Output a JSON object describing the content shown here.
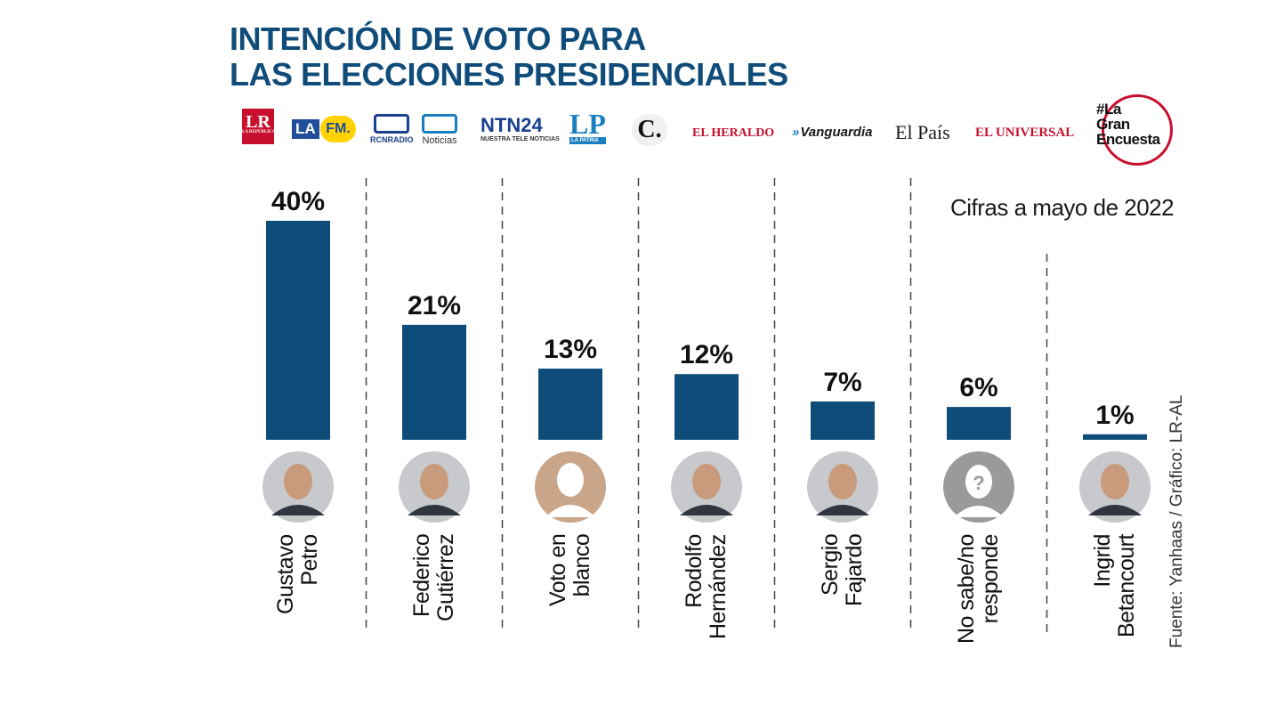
{
  "title": {
    "line1": "INTENCIÓN DE VOTO PARA",
    "line2": "LAS ELECCIONES PRESIDENCIALES"
  },
  "logos": {
    "lr": "LR",
    "lr_sub": "LA REPÚBLICA",
    "lafm_la": "LA",
    "lafm_fm": "FM.",
    "rcn_radio": "RCNRADIO",
    "rcn_noticias": "Noticias",
    "ntn": "NTN24",
    "ntn_sub": "NUESTRA TELE NOTICIAS",
    "lp": "LP",
    "lp_sub": "LA PATRIA",
    "elc": "C.",
    "heraldo": "EL HERALDO",
    "vanguardia": "Vanguardia",
    "elpais": "El País",
    "universal": "EL UNIVERSAL",
    "gran1": "#La",
    "gran2": "Gran",
    "gran3": "Encuesta"
  },
  "note": "Cifras a mayo de 2022",
  "source": "Fuente: Yanhaas / Gráfico: LR-AL",
  "colors": {
    "bar": "#0e4d7a",
    "title": "#0f4c7a",
    "avatar_bg": "#b9b9b9",
    "blank_avatar": "#c9a68a"
  },
  "chart_data": {
    "type": "bar",
    "title": "INTENCIÓN DE VOTO PARA LAS ELECCIONES PRESIDENCIALES",
    "categories": [
      "Gustavo Petro",
      "Federico Gutiérrez",
      "Voto en blanco",
      "Rodolfo Hernández",
      "Sergio Fajardo",
      "No sabe/no responde",
      "Ingrid Betancourt"
    ],
    "category_lines": [
      [
        "Gustavo",
        "Petro"
      ],
      [
        "Federico",
        "Gutiérrez"
      ],
      [
        "Voto en",
        "blanco"
      ],
      [
        "Rodolfo",
        "Hernández"
      ],
      [
        "Sergio",
        "Fajardo"
      ],
      [
        "No sabe/no",
        "responde"
      ],
      [
        "Ingrid",
        "Betancourt"
      ]
    ],
    "values": [
      40,
      21,
      13,
      12,
      7,
      6,
      1
    ],
    "value_labels": [
      "40%",
      "21%",
      "13%",
      "12%",
      "7%",
      "6%",
      "1%"
    ],
    "avatars": [
      "person-photo",
      "person-photo",
      "blank-silhouette",
      "person-photo",
      "person-photo",
      "unknown-silhouette",
      "person-photo"
    ],
    "ylim": [
      0,
      40
    ],
    "grid": false,
    "legend": "none"
  }
}
